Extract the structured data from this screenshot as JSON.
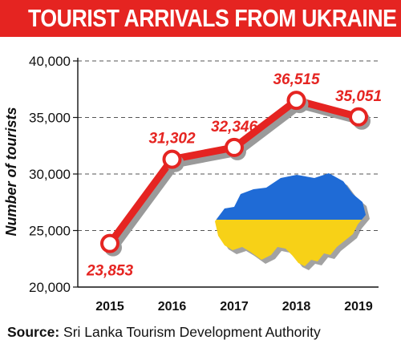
{
  "title": "TOURIST ARRIVALS FROM UKRAINE",
  "source": {
    "label": "Source:",
    "text": "Sri Lanka Tourism Development Authority"
  },
  "map_icon": "ukraine-map-icon",
  "colors": {
    "accent": "#e52421",
    "map_blue": "#1f6bd6",
    "map_yellow": "#f7d117"
  },
  "chart_data": {
    "type": "line",
    "xlabel": "",
    "ylabel": "Number of tourists",
    "ylim": [
      20000,
      40000
    ],
    "yticks": [
      20000,
      25000,
      30000,
      35000,
      40000
    ],
    "ytick_labels": [
      "20,000",
      "25,000",
      "30,000",
      "35,000",
      "40,000"
    ],
    "grid": "horizontal dashed",
    "categories": [
      "2015",
      "2016",
      "2017",
      "2018",
      "2019"
    ],
    "values": [
      23853,
      31302,
      32346,
      36515,
      35051
    ],
    "data_labels": [
      "23,853",
      "31,302",
      "32,346",
      "36,515",
      "35,051"
    ]
  }
}
